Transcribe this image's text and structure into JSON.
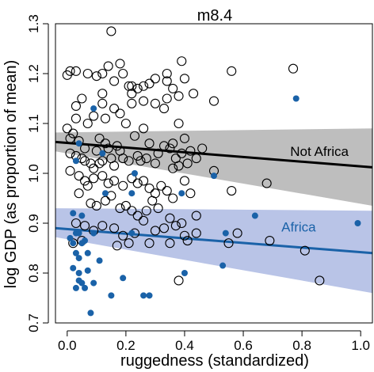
{
  "chart_data": {
    "type": "scatter",
    "title": "m8.4",
    "xlabel": "ruggedness (standardized)",
    "ylabel": "log GDP (as proportion of mean)",
    "xlim": [
      -0.04,
      1.04
    ],
    "ylim": [
      0.7,
      1.3
    ],
    "xticks": [
      0.0,
      0.2,
      0.4,
      0.6,
      0.8,
      1.0
    ],
    "yticks": [
      0.7,
      0.8,
      0.9,
      1.0,
      1.1,
      1.2,
      1.3
    ],
    "xtick_labels": [
      "0.0",
      "0.2",
      "0.4",
      "0.6",
      "0.8",
      "1.0"
    ],
    "ytick_labels": [
      "0.7",
      "0.8",
      "0.9",
      "1.0",
      "1.1",
      "1.2",
      "1.3"
    ],
    "series": [
      {
        "name": "Not Africa",
        "style": "open-circle",
        "color": "#000000",
        "points": [
          [
            0.0,
            1.197
          ],
          [
            0.01,
            1.205
          ],
          [
            0.03,
            1.205
          ],
          [
            0.07,
            1.2
          ],
          [
            0.1,
            1.195
          ],
          [
            0.12,
            1.2
          ],
          [
            0.12,
            1.16
          ],
          [
            0.12,
            1.14
          ],
          [
            0.14,
            1.215
          ],
          [
            0.15,
            1.285
          ],
          [
            0.16,
            1.185
          ],
          [
            0.18,
            1.22
          ],
          [
            0.19,
            1.2
          ],
          [
            0.21,
            1.175
          ],
          [
            0.22,
            1.175
          ],
          [
            0.22,
            1.16
          ],
          [
            0.24,
            1.17
          ],
          [
            0.26,
            1.175
          ],
          [
            0.28,
            1.18
          ],
          [
            0.3,
            1.19
          ],
          [
            0.34,
            1.2
          ],
          [
            0.34,
            1.185
          ],
          [
            0.36,
            1.17
          ],
          [
            0.39,
            1.225
          ],
          [
            0.4,
            1.19
          ],
          [
            0.38,
            1.155
          ],
          [
            0.43,
            1.16
          ],
          [
            0.56,
            1.205
          ],
          [
            0.77,
            1.21
          ],
          [
            0.5,
            1.145
          ],
          [
            0.34,
            1.15
          ],
          [
            0.33,
            1.13
          ],
          [
            0.3,
            1.14
          ],
          [
            0.26,
            1.145
          ],
          [
            0.22,
            1.14
          ],
          [
            0.18,
            1.12
          ],
          [
            0.16,
            1.13
          ],
          [
            0.03,
            1.135
          ],
          [
            0.03,
            1.11
          ],
          [
            0.05,
            1.15
          ],
          [
            0.09,
            1.115
          ],
          [
            0.13,
            1.11
          ],
          [
            0.07,
            1.1
          ],
          [
            0.2,
            1.1
          ],
          [
            0.23,
            1.075
          ],
          [
            0.28,
            1.06
          ],
          [
            0.26,
            1.09
          ],
          [
            0.38,
            1.1
          ],
          [
            0.36,
            1.06
          ],
          [
            0.0,
            1.09
          ],
          [
            0.01,
            1.07
          ],
          [
            0.02,
            1.08
          ],
          [
            0.04,
            1.065
          ],
          [
            0.06,
            1.05
          ],
          [
            0.1,
            1.045
          ],
          [
            0.11,
            1.07
          ],
          [
            0.13,
            1.06
          ],
          [
            0.14,
            1.05
          ],
          [
            0.17,
            1.055
          ],
          [
            0.18,
            1.045
          ],
          [
            0.01,
            1.04
          ],
          [
            0.03,
            1.035
          ],
          [
            0.05,
            1.03
          ],
          [
            0.06,
            1.025
          ],
          [
            0.08,
            1.02
          ],
          [
            0.09,
            1.01
          ],
          [
            0.11,
            1.02
          ],
          [
            0.12,
            1.025
          ],
          [
            0.15,
            1.03
          ],
          [
            0.16,
            1.015
          ],
          [
            0.19,
            1.03
          ],
          [
            0.21,
            1.025
          ],
          [
            0.24,
            1.035
          ],
          [
            0.25,
            1.025
          ],
          [
            0.27,
            1.03
          ],
          [
            0.3,
            1.02
          ],
          [
            0.31,
            1.04
          ],
          [
            0.33,
            1.055
          ],
          [
            0.35,
            1.05
          ],
          [
            0.37,
            1.03
          ],
          [
            0.39,
            1.04
          ],
          [
            0.4,
            1.07
          ],
          [
            0.42,
            1.045
          ],
          [
            0.44,
            1.03
          ],
          [
            0.46,
            1.05
          ],
          [
            0.41,
            1.02
          ],
          [
            0.38,
            1.015
          ],
          [
            0.36,
            1.01
          ],
          [
            0.01,
            1.005
          ],
          [
            0.04,
            0.995
          ],
          [
            0.06,
            0.985
          ],
          [
            0.07,
            0.975
          ],
          [
            0.09,
            0.99
          ],
          [
            0.12,
            0.995
          ],
          [
            0.14,
            0.98
          ],
          [
            0.16,
            0.985
          ],
          [
            0.19,
            0.975
          ],
          [
            0.22,
            0.99
          ],
          [
            0.24,
            0.98
          ],
          [
            0.26,
            0.985
          ],
          [
            0.28,
            0.97
          ],
          [
            0.3,
            0.96
          ],
          [
            0.32,
            0.975
          ],
          [
            0.34,
            0.965
          ],
          [
            0.36,
            0.95
          ],
          [
            0.4,
            0.985
          ],
          [
            0.42,
            0.96
          ],
          [
            0.5,
            1.005
          ],
          [
            0.56,
            0.965
          ],
          [
            0.68,
            0.98
          ],
          [
            0.04,
            0.96
          ],
          [
            0.08,
            0.94
          ],
          [
            0.1,
            0.935
          ],
          [
            0.13,
            0.945
          ],
          [
            0.15,
            0.955
          ],
          [
            0.18,
            0.93
          ],
          [
            0.2,
            0.935
          ],
          [
            0.22,
            0.925
          ],
          [
            0.24,
            0.915
          ],
          [
            0.27,
            0.925
          ],
          [
            0.29,
            0.945
          ],
          [
            0.31,
            0.93
          ],
          [
            0.35,
            0.91
          ],
          [
            0.39,
            0.9
          ],
          [
            0.44,
            0.915
          ],
          [
            0.03,
            0.9
          ],
          [
            0.06,
            0.895
          ],
          [
            0.09,
            0.885
          ],
          [
            0.12,
            0.895
          ],
          [
            0.16,
            0.89
          ],
          [
            0.19,
            0.875
          ],
          [
            0.23,
            0.88
          ],
          [
            0.26,
            0.905
          ],
          [
            0.3,
            0.885
          ],
          [
            0.33,
            0.89
          ],
          [
            0.37,
            0.895
          ],
          [
            0.4,
            0.875
          ],
          [
            0.44,
            0.88
          ],
          [
            0.58,
            0.88
          ],
          [
            0.02,
            0.86
          ],
          [
            0.05,
            0.865
          ],
          [
            0.17,
            0.855
          ],
          [
            0.21,
            0.86
          ],
          [
            0.28,
            0.86
          ],
          [
            0.35,
            0.86
          ],
          [
            0.41,
            0.865
          ],
          [
            0.55,
            0.86
          ],
          [
            0.69,
            0.865
          ],
          [
            0.81,
            0.845
          ],
          [
            0.86,
            0.785
          ],
          [
            0.38,
            0.785
          ]
        ]
      },
      {
        "name": "Africa",
        "style": "filled-circle",
        "color": "#1a62a8",
        "points": [
          [
            0.09,
            1.13
          ],
          [
            0.78,
            1.15
          ],
          [
            0.04,
            1.06
          ],
          [
            0.12,
            1.04
          ],
          [
            0.03,
            1.025
          ],
          [
            0.23,
            1.0
          ],
          [
            0.5,
            0.995
          ],
          [
            0.39,
            0.96
          ],
          [
            0.13,
            0.96
          ],
          [
            0.22,
            0.96
          ],
          [
            0.02,
            0.92
          ],
          [
            0.05,
            0.915
          ],
          [
            0.64,
            0.915
          ],
          [
            0.99,
            0.9
          ],
          [
            0.01,
            0.87
          ],
          [
            0.03,
            0.88
          ],
          [
            0.04,
            0.88
          ],
          [
            0.09,
            0.88
          ],
          [
            0.22,
            0.88
          ],
          [
            0.54,
            0.88
          ],
          [
            0.06,
            0.865
          ],
          [
            0.02,
            0.86
          ],
          [
            0.05,
            0.86
          ],
          [
            0.03,
            0.84
          ],
          [
            0.04,
            0.83
          ],
          [
            0.07,
            0.84
          ],
          [
            0.02,
            0.81
          ],
          [
            0.04,
            0.8
          ],
          [
            0.11,
            0.825
          ],
          [
            0.53,
            0.815
          ],
          [
            0.07,
            0.805
          ],
          [
            0.04,
            0.785
          ],
          [
            0.05,
            0.78
          ],
          [
            0.09,
            0.78
          ],
          [
            0.06,
            0.77
          ],
          [
            0.03,
            0.77
          ],
          [
            0.19,
            0.79
          ],
          [
            0.4,
            0.8
          ],
          [
            0.15,
            0.755
          ],
          [
            0.26,
            0.755
          ],
          [
            0.28,
            0.755
          ],
          [
            0.08,
            0.72
          ]
        ]
      }
    ],
    "fits": [
      {
        "name": "Not Africa",
        "line_color": "#000000",
        "band_color": "#bebebe",
        "x": [
          -0.04,
          1.04
        ],
        "mean": [
          1.063,
          1.012
        ],
        "lower": [
          1.044,
          0.935
        ],
        "upper": [
          1.082,
          1.09
        ],
        "label_x": 0.76,
        "label_y": 1.035
      },
      {
        "name": "Africa",
        "line_color": "#1a62a8",
        "band_color": "#b9c4e7",
        "x": [
          -0.04,
          1.04
        ],
        "mean": [
          0.89,
          0.84
        ],
        "lower": [
          0.872,
          0.76
        ],
        "upper": [
          0.93,
          0.925
        ],
        "label_x": 0.73,
        "label_y": 0.883
      }
    ]
  }
}
